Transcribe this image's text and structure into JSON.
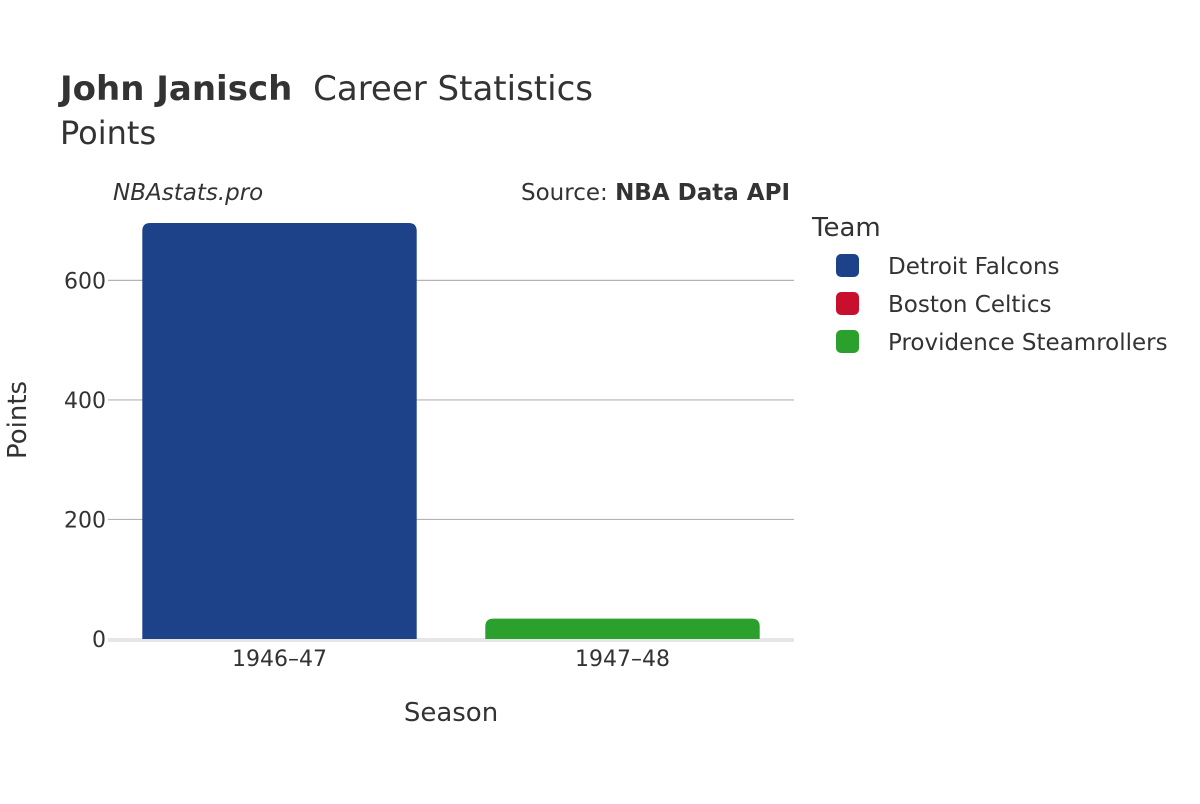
{
  "title": {
    "name": "John Janisch",
    "rest": "Career Statistics",
    "subtitle": "Points"
  },
  "watermark": "NBAstats.pro",
  "source": {
    "prefix": "Source: ",
    "name": "NBA Data API"
  },
  "legend": {
    "title": "Team",
    "items": [
      {
        "label": "Detroit Falcons",
        "color": "#1d428a"
      },
      {
        "label": "Boston Celtics",
        "color": "#c8102e"
      },
      {
        "label": "Providence Steamrollers",
        "color": "#2ca02c"
      }
    ]
  },
  "chart_data": {
    "type": "bar",
    "xlabel": "Season",
    "ylabel": "Points",
    "categories": [
      "1946–47",
      "1947–48"
    ],
    "bars": [
      {
        "season": "1946–47",
        "team": "Detroit Falcons",
        "value": 696,
        "color": "#1d428a"
      },
      {
        "season": "1947–48",
        "team": "Providence Steamrollers",
        "value": 34,
        "color": "#2ca02c"
      }
    ],
    "ylim": [
      0,
      696
    ],
    "yticks": [
      0,
      200,
      400,
      600
    ],
    "grid": true,
    "legend_position": "right"
  }
}
